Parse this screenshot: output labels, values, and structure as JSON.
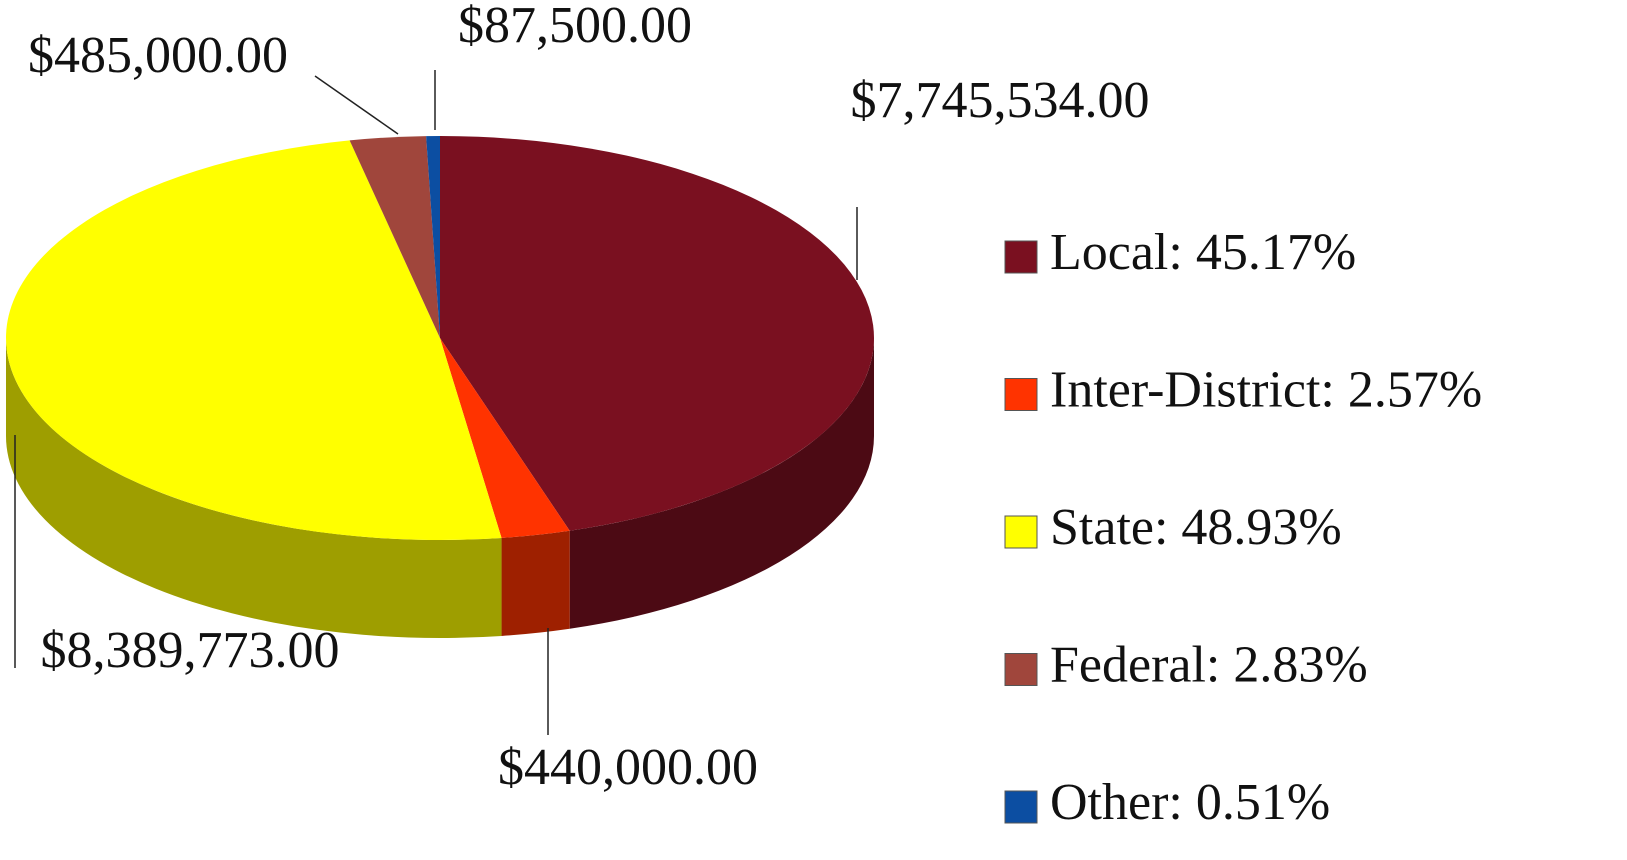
{
  "chart_data": {
    "type": "pie3d",
    "categories": [
      "Local: 45.17%",
      "Inter-District: 2.57%",
      "State: 48.93%",
      "Federal: 2.83%",
      "Other: 0.51%"
    ],
    "values": [
      7745534,
      440000,
      8389773,
      485000,
      87500
    ],
    "value_labels": [
      "$7,745,534.00",
      "$440,000.00",
      "$8,389,773.00",
      "$485,000.00",
      "$87,500.00"
    ],
    "colors": [
      "#7a1020",
      "#ff3300",
      "#ffff00",
      "#a0463c",
      "#0c4ea2"
    ],
    "legend": "right"
  }
}
